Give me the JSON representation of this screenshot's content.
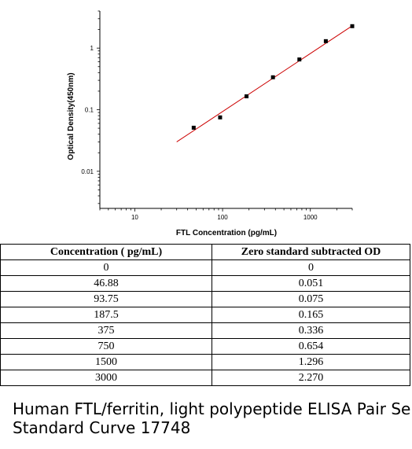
{
  "chart_data": {
    "type": "scatter",
    "title": "",
    "xlabel": "FTL Concentration (pg/mL)",
    "ylabel": "Optical Density(450nm)",
    "xscale": "log",
    "yscale": "log",
    "xlim": [
      4,
      3000
    ],
    "ylim": [
      0.0025,
      4
    ],
    "xticks": [
      10,
      100,
      1000
    ],
    "xtick_labels": [
      "10",
      "100",
      "1000"
    ],
    "yticks": [
      0.01,
      0.1,
      1
    ],
    "ytick_labels": [
      "0.01",
      "0.1",
      "1"
    ],
    "grid": false,
    "legend": "none",
    "points": [
      {
        "x": 46.88,
        "y": 0.051
      },
      {
        "x": 93.75,
        "y": 0.075
      },
      {
        "x": 187.5,
        "y": 0.165
      },
      {
        "x": 375,
        "y": 0.336
      },
      {
        "x": 750,
        "y": 0.654
      },
      {
        "x": 1500,
        "y": 1.296
      },
      {
        "x": 3000,
        "y": 2.27
      }
    ],
    "fit_line": {
      "x": [
        30,
        3000
      ],
      "y": [
        0.03,
        2.3
      ],
      "color": "#cc0000"
    },
    "marker_color": "#000000"
  },
  "table": {
    "headers": [
      "Concentration ( pg/mL)",
      "Zero standard subtracted OD"
    ],
    "rows": [
      [
        "0",
        "0"
      ],
      [
        "46.88",
        "0.051"
      ],
      [
        "93.75",
        "0.075"
      ],
      [
        "187.5",
        "0.165"
      ],
      [
        "375",
        "0.336"
      ],
      [
        "750",
        "0.654"
      ],
      [
        "1500",
        "1.296"
      ],
      [
        "3000",
        "2.270"
      ]
    ]
  },
  "caption": {
    "line1": "Human FTL/ferritin, light polypeptide ELISA Pair Se",
    "line2": "Standard Curve 17748"
  }
}
